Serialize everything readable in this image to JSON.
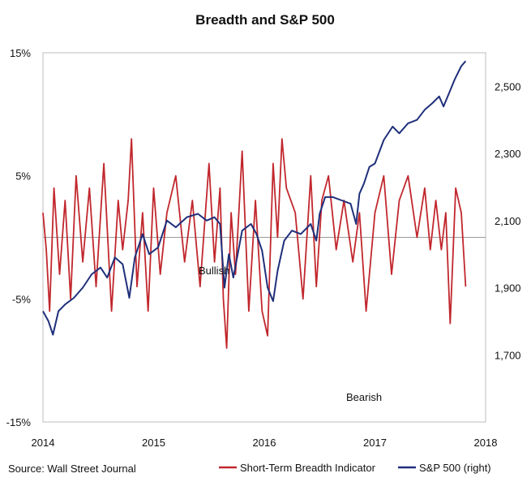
{
  "chart_data": {
    "type": "line",
    "title": "Breadth and S&P 500",
    "source": "Source: Wall Street Journal",
    "x_ticks": [
      "2014",
      "2015",
      "2016",
      "2017",
      "2018"
    ],
    "xlim": [
      2014,
      2018
    ],
    "y_left_ticks": [
      "15%",
      "5%",
      "-5%",
      "-15%"
    ],
    "y_left_lim": [
      -15,
      15
    ],
    "y_right_ticks": [
      "2,500",
      "2,300",
      "2,100",
      "1,900",
      "1,700"
    ],
    "y_right_lim": [
      1500,
      2600
    ],
    "grid": false,
    "zero_line": true,
    "legend_position": "bottom",
    "annotations": [
      "Bullish",
      "Bearish"
    ],
    "colors": {
      "breadth": "#c1272d",
      "spx": "#1f2f7a"
    },
    "series": [
      {
        "name": "S&P 500 (right)",
        "axis": "right",
        "x": [
          2014.0,
          2014.05,
          2014.09,
          2014.14,
          2014.2,
          2014.28,
          2014.36,
          2014.44,
          2014.52,
          2014.58,
          2014.65,
          2014.72,
          2014.78,
          2014.83,
          2014.9,
          2014.96,
          2015.04,
          2015.12,
          2015.2,
          2015.3,
          2015.4,
          2015.48,
          2015.55,
          2015.6,
          2015.64,
          2015.68,
          2015.72,
          2015.8,
          2015.88,
          2015.93,
          2015.98,
          2016.03,
          2016.08,
          2016.12,
          2016.18,
          2016.25,
          2016.33,
          2016.42,
          2016.47,
          2016.5,
          2016.55,
          2016.62,
          2016.7,
          2016.78,
          2016.83,
          2016.86,
          2016.9,
          2016.95,
          2017.0,
          2017.08,
          2017.16,
          2017.22,
          2017.3,
          2017.38,
          2017.45,
          2017.52,
          2017.58,
          2017.62,
          2017.67,
          2017.72,
          2017.78,
          2017.82
        ],
        "values": [
          1830,
          1800,
          1760,
          1830,
          1850,
          1870,
          1900,
          1940,
          1960,
          1930,
          1990,
          1970,
          1870,
          1990,
          2060,
          2000,
          2020,
          2100,
          2080,
          2110,
          2120,
          2100,
          2110,
          2090,
          1900,
          2000,
          1930,
          2070,
          2090,
          2060,
          2010,
          1900,
          1860,
          1950,
          2040,
          2070,
          2060,
          2090,
          2040,
          2120,
          2170,
          2170,
          2160,
          2150,
          2090,
          2180,
          2210,
          2260,
          2270,
          2340,
          2380,
          2360,
          2390,
          2400,
          2430,
          2450,
          2470,
          2440,
          2480,
          2520,
          2560,
          2575
        ]
      },
      {
        "name": "Short-Term Breadth Indicator",
        "axis": "left",
        "x": [
          2014.0,
          2014.03,
          2014.06,
          2014.1,
          2014.15,
          2014.2,
          2014.25,
          2014.3,
          2014.36,
          2014.42,
          2014.48,
          2014.55,
          2014.62,
          2014.68,
          2014.72,
          2014.77,
          2014.8,
          2014.85,
          2014.9,
          2014.95,
          2015.0,
          2015.06,
          2015.12,
          2015.2,
          2015.28,
          2015.35,
          2015.42,
          2015.5,
          2015.55,
          2015.6,
          2015.63,
          2015.66,
          2015.7,
          2015.74,
          2015.8,
          2015.86,
          2015.92,
          2015.98,
          2016.03,
          2016.08,
          2016.12,
          2016.16,
          2016.2,
          2016.28,
          2016.35,
          2016.42,
          2016.47,
          2016.52,
          2016.58,
          2016.65,
          2016.72,
          2016.8,
          2016.86,
          2016.92,
          2017.0,
          2017.08,
          2017.15,
          2017.22,
          2017.3,
          2017.38,
          2017.45,
          2017.5,
          2017.55,
          2017.6,
          2017.64,
          2017.68,
          2017.73,
          2017.78,
          2017.82
        ],
        "values": [
          2,
          -1,
          -6,
          4,
          -3,
          3,
          -5,
          5,
          -2,
          4,
          -4,
          6,
          -6,
          3,
          -1,
          3,
          8,
          -4,
          2,
          -6,
          4,
          -3,
          2,
          5,
          -2,
          3,
          -4,
          6,
          -2,
          4,
          -5,
          -9,
          2,
          -3,
          7,
          -6,
          3,
          -6,
          -8,
          6,
          0,
          8,
          4,
          2,
          -5,
          5,
          -4,
          3,
          5,
          -1,
          3,
          -2,
          2,
          -6,
          2,
          5,
          -3,
          3,
          5,
          0,
          4,
          -1,
          3,
          -1,
          2,
          -7,
          4,
          2,
          -4
        ]
      }
    ]
  }
}
